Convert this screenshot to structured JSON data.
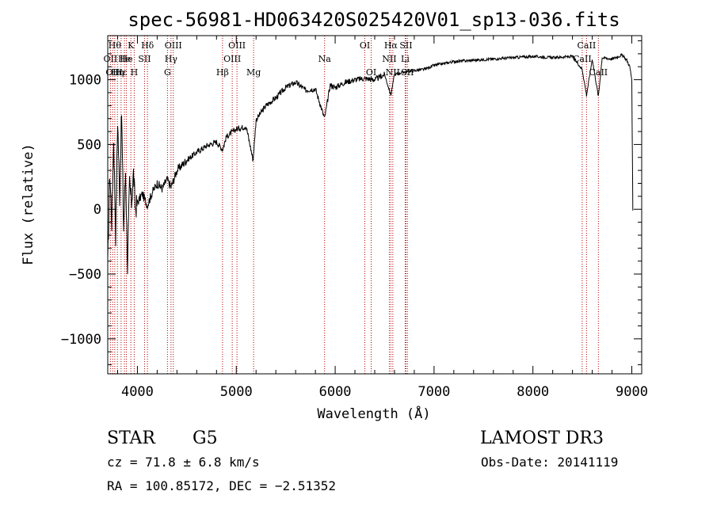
{
  "chart_data": {
    "type": "line",
    "title": "spec-56981-HD063420S025420V01_sp13-036.fits",
    "xlabel": "Wavelength (Å)",
    "ylabel": "Flux (relative)",
    "xlim": [
      3700,
      9100
    ],
    "ylim": [
      -1270,
      1340
    ],
    "xticks": [
      4000,
      5000,
      6000,
      7000,
      8000,
      9000
    ],
    "xtick_labels": [
      "4000",
      "5000",
      "6000",
      "7000",
      "8000",
      "9000"
    ],
    "yticks": [
      1000,
      500,
      0,
      -500,
      -1000
    ],
    "ytick_labels": [
      "1000",
      "500",
      "0",
      "−500",
      "−1000"
    ],
    "series": [
      {
        "name": "spectrum",
        "x": [
          3700,
          3720,
          3740,
          3760,
          3780,
          3800,
          3820,
          3840,
          3860,
          3880,
          3900,
          3920,
          3940,
          3960,
          3980,
          4000,
          4050,
          4100,
          4150,
          4200,
          4250,
          4300,
          4340,
          4400,
          4500,
          4600,
          4700,
          4800,
          4861,
          4900,
          5000,
          5100,
          5170,
          5200,
          5300,
          5400,
          5500,
          5600,
          5700,
          5800,
          5893,
          5950,
          6000,
          6100,
          6200,
          6300,
          6400,
          6500,
          6563,
          6600,
          6700,
          6800,
          6900,
          7000,
          7200,
          7400,
          7600,
          7800,
          8000,
          8200,
          8400,
          8498,
          8542,
          8600,
          8662,
          8700,
          8800,
          8900,
          8950,
          8980,
          9000,
          9010
        ],
        "values": [
          -450,
          300,
          -100,
          550,
          -200,
          700,
          100,
          750,
          -150,
          300,
          -450,
          200,
          50,
          280,
          0,
          50,
          120,
          30,
          130,
          200,
          160,
          230,
          170,
          300,
          380,
          440,
          490,
          520,
          460,
          560,
          620,
          640,
          380,
          690,
          800,
          860,
          940,
          980,
          920,
          930,
          700,
          960,
          940,
          980,
          1000,
          1010,
          1000,
          1040,
          880,
          1040,
          1060,
          1070,
          1080,
          1110,
          1140,
          1150,
          1160,
          1170,
          1180,
          1170,
          1180,
          1080,
          880,
          1160,
          870,
          1170,
          1160,
          1190,
          1150,
          1100,
          1000,
          -10
        ]
      }
    ],
    "line_markers": [
      {
        "x": 3727,
        "label": "OII",
        "row": 2
      },
      {
        "x": 3750,
        "label": "OII",
        "row": 3
      },
      {
        "x": 3771,
        "label": "Hθ",
        "row": 1
      },
      {
        "x": 3798,
        "label": "Hη",
        "row": 3
      },
      {
        "x": 3835,
        "label": "Hε",
        "row": 3
      },
      {
        "x": 3869,
        "label": "He",
        "row": 2
      },
      {
        "x": 3889,
        "label": "He",
        "row": 2
      },
      {
        "x": 3934,
        "label": "K",
        "row": 1
      },
      {
        "x": 3968,
        "label": "H",
        "row": 3
      },
      {
        "x": 4072,
        "label": "SII",
        "row": 2
      },
      {
        "x": 4102,
        "label": "Hδ",
        "row": 1
      },
      {
        "x": 4304,
        "label": "G",
        "row": 3
      },
      {
        "x": 4340,
        "label": "Hγ",
        "row": 2
      },
      {
        "x": 4363,
        "label": "OIII",
        "row": 1
      },
      {
        "x": 4861,
        "label": "Hβ",
        "row": 3
      },
      {
        "x": 4959,
        "label": "OIII",
        "row": 2
      },
      {
        "x": 5007,
        "label": "OIII",
        "row": 1
      },
      {
        "x": 5175,
        "label": "Mg",
        "row": 3
      },
      {
        "x": 5893,
        "label": "Na",
        "row": 2
      },
      {
        "x": 6300,
        "label": "OI",
        "row": 1
      },
      {
        "x": 6364,
        "label": "OI",
        "row": 3
      },
      {
        "x": 6548,
        "label": "NII",
        "row": 2
      },
      {
        "x": 6563,
        "label": "Hα",
        "row": 1
      },
      {
        "x": 6583,
        "label": "NII",
        "row": 3
      },
      {
        "x": 6708,
        "label": "Li",
        "row": 2
      },
      {
        "x": 6716,
        "label": "SII",
        "row": 1
      },
      {
        "x": 6731,
        "label": "SII",
        "row": 3
      },
      {
        "x": 8498,
        "label": "CaII",
        "row": 2
      },
      {
        "x": 8542,
        "label": "CaII",
        "row": 1
      },
      {
        "x": 8662,
        "label": "CaII",
        "row": 3
      }
    ],
    "colors": {
      "spectrum": "#000000",
      "marker": "#b40000",
      "axes": "#000000"
    }
  },
  "footer": {
    "object_class": "STAR",
    "subclass": "G5",
    "survey": "LAMOST DR3",
    "redshift": "cz = 71.8 ± 6.8 km/s",
    "obs_date": "Obs-Date: 20141119",
    "coords": "RA = 100.85172, DEC =  −2.51352"
  }
}
